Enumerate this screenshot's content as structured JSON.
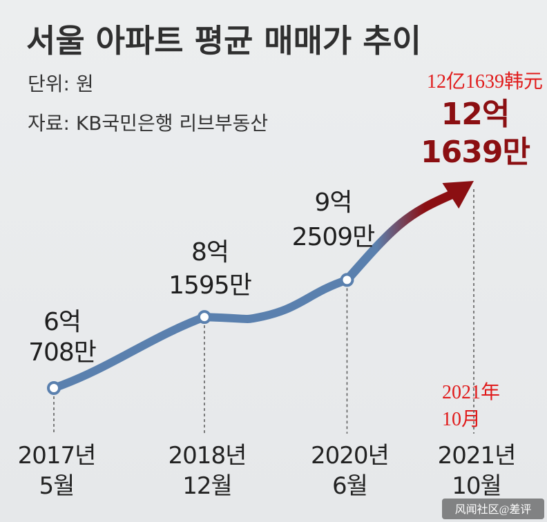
{
  "header": {
    "title": "서울 아파트 평균 매매가 추이",
    "unit": "단위: 원",
    "source": "자료: KB국민은행 리브부동산"
  },
  "annotations": {
    "cn_value": "12亿1639韩元",
    "cn_date_line1": "2021年",
    "cn_date_line2": "10月",
    "watermark": "风闻社区@差评"
  },
  "colors": {
    "line": "#5a80ae",
    "arrow_dark": "#8b0f12",
    "annotation_red": "#e01a1a"
  },
  "chart_data": {
    "type": "line",
    "title": "서울 아파트 평균 매매가 추이",
    "unit": "원",
    "x": [
      "2017-05",
      "2018-12",
      "2020-06",
      "2021-10"
    ],
    "tick_labels": [
      [
        "2017년",
        "5월"
      ],
      [
        "2018년",
        "12월"
      ],
      [
        "2020년",
        "6월"
      ],
      [
        "2021년",
        "10월"
      ]
    ],
    "values": [
      607080000,
      815950000,
      925090000,
      1216390000
    ],
    "data_labels": [
      [
        "6억",
        "708만"
      ],
      [
        "8억",
        "1595만"
      ],
      [
        "9억",
        "2509만"
      ],
      [
        "12억",
        "1639만"
      ]
    ],
    "grid": false,
    "legend": "none",
    "last_segment": "arrow"
  }
}
